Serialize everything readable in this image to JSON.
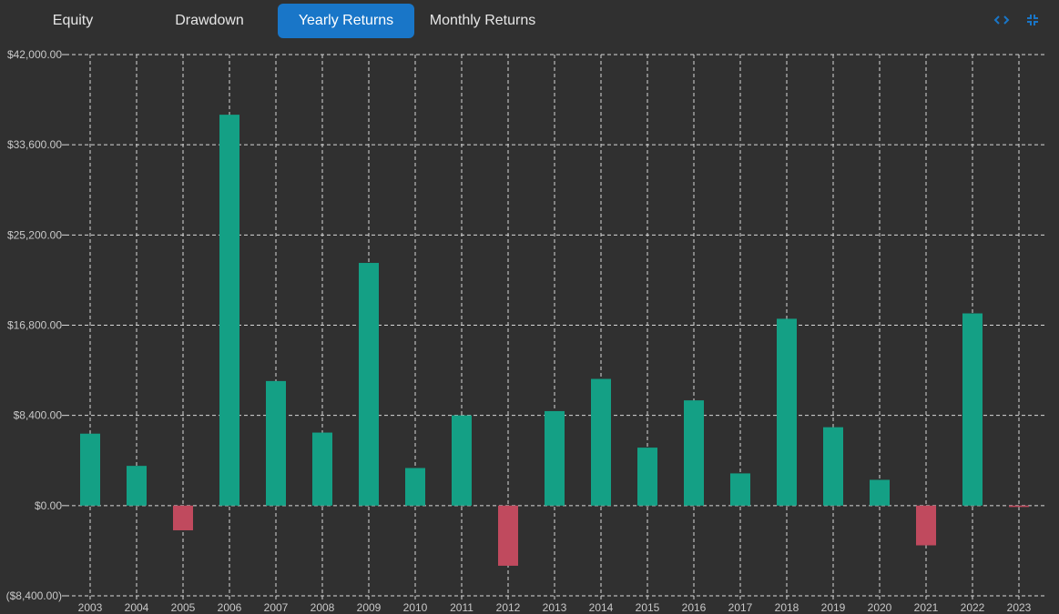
{
  "tabs": [
    {
      "label": "Equity",
      "active": false
    },
    {
      "label": "Drawdown",
      "active": false
    },
    {
      "label": "Yearly Returns",
      "active": true
    },
    {
      "label": "Monthly Returns",
      "active": false
    }
  ],
  "toolbar": {
    "icons": [
      "code-brackets-icon",
      "collapse-icon"
    ],
    "accent": "#1976c8"
  },
  "colors": {
    "positive": "#14a085",
    "negative": "#c04a5e",
    "grid": "#d8d8d8",
    "background": "#303030"
  },
  "chart_data": {
    "type": "bar",
    "categories": [
      "2003",
      "2004",
      "2005",
      "2006",
      "2007",
      "2008",
      "2009",
      "2010",
      "2011",
      "2012",
      "2013",
      "2014",
      "2015",
      "2016",
      "2017",
      "2018",
      "2019",
      "2020",
      "2021",
      "2022",
      "2023"
    ],
    "values": [
      6700,
      3700,
      -2300,
      36400,
      11600,
      6800,
      22600,
      3500,
      8400,
      -5600,
      8800,
      11800,
      5400,
      9800,
      3000,
      17400,
      7300,
      2400,
      -3700,
      17900,
      -100
    ],
    "ylim": [
      -8400,
      42000
    ],
    "yticks": [
      "$42,000.00",
      "$33,600.00",
      "$25,200.00",
      "$16,800.00",
      "$8,400.00",
      "$0.00",
      "($8,400.00)"
    ],
    "ytick_values": [
      42000,
      33600,
      25200,
      16800,
      8400,
      0,
      -8400
    ],
    "grid": true,
    "xlabel": "",
    "ylabel": ""
  }
}
